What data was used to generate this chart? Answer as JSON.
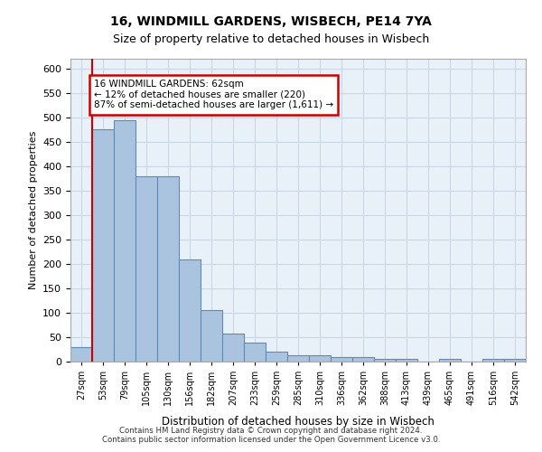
{
  "title_line1": "16, WINDMILL GARDENS, WISBECH, PE14 7YA",
  "title_line2": "Size of property relative to detached houses in Wisbech",
  "xlabel": "Distribution of detached houses by size in Wisbech",
  "ylabel": "Number of detached properties",
  "footer_line1": "Contains HM Land Registry data © Crown copyright and database right 2024.",
  "footer_line2": "Contains public sector information licensed under the Open Government Licence v3.0.",
  "bin_labels": [
    "27sqm",
    "53sqm",
    "79sqm",
    "105sqm",
    "130sqm",
    "156sqm",
    "182sqm",
    "207sqm",
    "233sqm",
    "259sqm",
    "285sqm",
    "310sqm",
    "336sqm",
    "362sqm",
    "388sqm",
    "413sqm",
    "439sqm",
    "465sqm",
    "491sqm",
    "516sqm",
    "542sqm"
  ],
  "bar_values": [
    30,
    475,
    495,
    380,
    380,
    210,
    105,
    57,
    38,
    20,
    13,
    13,
    10,
    10,
    5,
    5,
    0,
    5,
    0,
    5,
    5
  ],
  "bar_color": "#aac4e0",
  "bar_edge_color": "#5b8db8",
  "annotation_text": "16 WINDMILL GARDENS: 62sqm\n← 12% of detached houses are smaller (220)\n87% of semi-detached houses are larger (1,611) →",
  "annotation_box_color": "#ffffff",
  "annotation_box_edge": "#cc0000",
  "ylim": [
    0,
    620
  ],
  "yticks": [
    0,
    50,
    100,
    150,
    200,
    250,
    300,
    350,
    400,
    450,
    500,
    550,
    600
  ],
  "grid_color": "#c8d8e8",
  "bg_color": "#e8f0f8",
  "red_line_x": 0.5
}
